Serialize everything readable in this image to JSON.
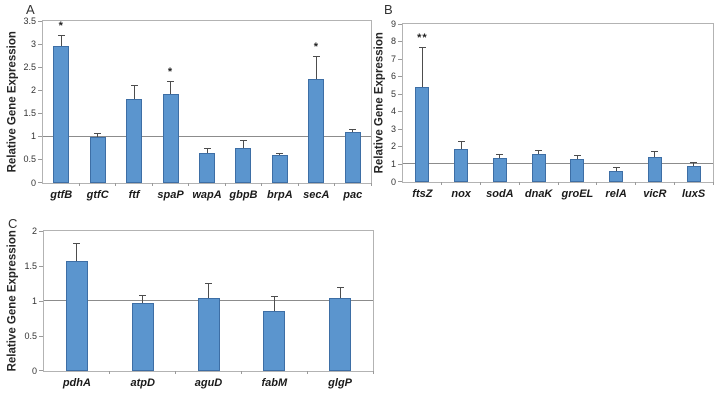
{
  "figure": {
    "panels": [
      "A",
      "B",
      "C"
    ],
    "colors": {
      "bar_fill": "#5b95ce",
      "bar_border": "#3d6ea5",
      "error_bar": "#4d4d4d",
      "axis": "#9a9a9a",
      "reference_line": "#8c8c8c",
      "text": "#262626"
    }
  },
  "chart_data": [
    {
      "panel": "A",
      "type": "bar",
      "title": "",
      "ylabel": "Relative Gene Expression",
      "xlabel": "",
      "ylim": [
        0,
        3.5
      ],
      "ytick_step": 0.5,
      "grid": false,
      "legend": null,
      "reference_line_y": 1,
      "categories": [
        "gtfB",
        "gtfC",
        "ftf",
        "spaP",
        "wapA",
        "gbpB",
        "brpA",
        "secA",
        "pac"
      ],
      "values": [
        2.95,
        1.0,
        1.82,
        1.93,
        0.65,
        0.76,
        0.6,
        2.25,
        1.1
      ],
      "error_top": [
        3.18,
        1.05,
        2.1,
        2.18,
        0.73,
        0.9,
        0.63,
        2.72,
        1.14
      ],
      "significance": [
        "*",
        "",
        "",
        "*",
        "",
        "",
        "",
        "*",
        ""
      ]
    },
    {
      "panel": "B",
      "type": "bar",
      "title": "",
      "ylabel": "Relative Gene Expression",
      "xlabel": "",
      "ylim": [
        0,
        9
      ],
      "ytick_step": 1,
      "grid": false,
      "legend": null,
      "reference_line_y": 1,
      "categories": [
        "ftsZ",
        "nox",
        "sodA",
        "dnaK",
        "groEL",
        "relA",
        "vicR",
        "luxS"
      ],
      "values": [
        5.4,
        1.9,
        1.35,
        1.6,
        1.3,
        0.6,
        1.45,
        0.9
      ],
      "error_top": [
        7.65,
        2.3,
        1.55,
        1.78,
        1.5,
        0.78,
        1.7,
        1.1
      ],
      "significance": [
        "**",
        "",
        "",
        "",
        "",
        "",
        "",
        ""
      ]
    },
    {
      "panel": "C",
      "type": "bar",
      "title": "",
      "ylabel": "Relative Gene Expression",
      "xlabel": "",
      "ylim": [
        0,
        2
      ],
      "ytick_step": 0.5,
      "grid": false,
      "legend": null,
      "reference_line_y": 1,
      "categories": [
        "pdhA",
        "atpD",
        "aguD",
        "fabM",
        "glgP"
      ],
      "values": [
        1.57,
        0.97,
        1.04,
        0.86,
        1.04
      ],
      "error_top": [
        1.82,
        1.07,
        1.25,
        1.06,
        1.18
      ],
      "significance": [
        "",
        "",
        "",
        "",
        ""
      ]
    }
  ]
}
